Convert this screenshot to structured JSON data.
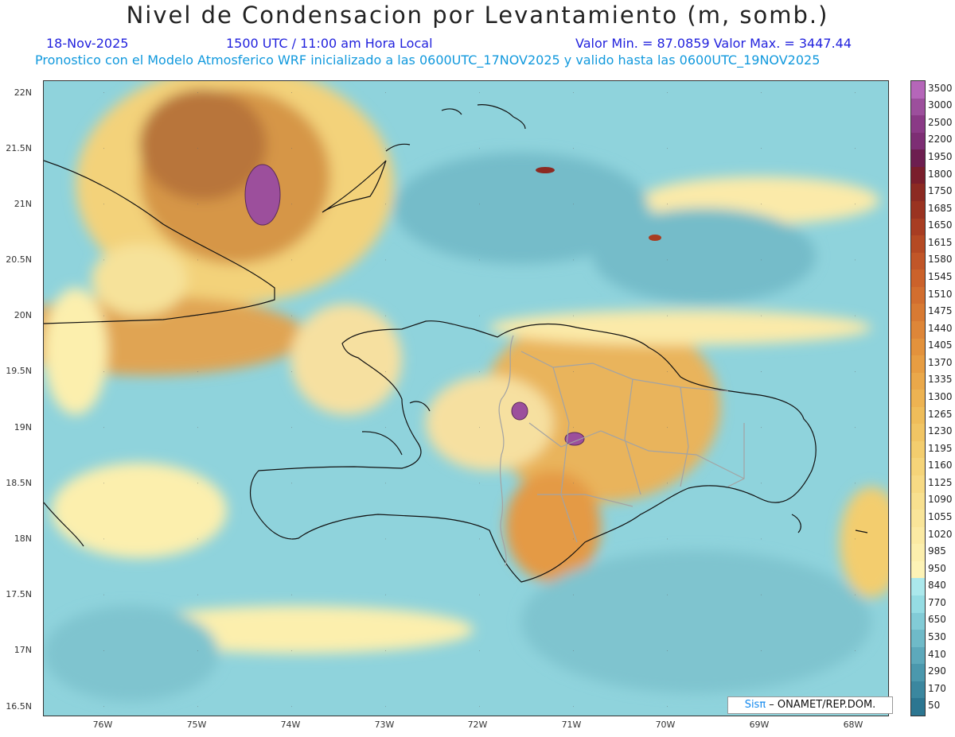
{
  "header": {
    "title": "Nivel de Condensacion por Levantamiento (m, somb.)",
    "date": "18-Nov-2025",
    "time": "1500 UTC / 11:00 am Hora Local",
    "min_max": "Valor Min. = 87.0859  Valor Max. = 3447.44",
    "model_info": "Pronostico con el Modelo Atmosferico WRF inicializado a las 0600UTC_17NOV2025 y valido hasta las  0600UTC_19NOV2025"
  },
  "axes": {
    "lat_labels": [
      "22N",
      "21.5N",
      "21N",
      "20.5N",
      "20N",
      "19.5N",
      "19N",
      "18.5N",
      "18N",
      "17.5N",
      "17N",
      "16.5N"
    ],
    "lon_labels": [
      "76W",
      "75W",
      "74W",
      "73W",
      "72W",
      "71W",
      "70W",
      "69W",
      "68W"
    ]
  },
  "colorbar": {
    "labels": [
      "3500",
      "3000",
      "2500",
      "2200",
      "1950",
      "1800",
      "1750",
      "1685",
      "1650",
      "1615",
      "1580",
      "1545",
      "1510",
      "1475",
      "1440",
      "1405",
      "1370",
      "1335",
      "1300",
      "1265",
      "1230",
      "1195",
      "1160",
      "1125",
      "1090",
      "1055",
      "1020",
      "985",
      "950",
      "840",
      "770",
      "650",
      "530",
      "410",
      "290",
      "170",
      "50"
    ],
    "colors": [
      "#b566b9",
      "#9c4f9c",
      "#8a3a86",
      "#7d2e74",
      "#6d1e50",
      "#7a1e2c",
      "#8c2a22",
      "#9a3321",
      "#a83d22",
      "#b54a24",
      "#c15628",
      "#cb622b",
      "#d26e2f",
      "#d87a33",
      "#de8638",
      "#e3923c",
      "#e79d42",
      "#eaa84a",
      "#edb352",
      "#efbd5a",
      "#f1c564",
      "#f3cd6e",
      "#f5d479",
      "#f7da84",
      "#f8e08f",
      "#f9e599",
      "#fbeaa3",
      "#fcefad",
      "#fdf3b6",
      "#abe8ec",
      "#95dce3",
      "#82cbd6",
      "#6fbac8",
      "#5da9bb",
      "#4b98ad",
      "#3b879f",
      "#2c7691"
    ]
  },
  "credit": {
    "brand": "Sisπ",
    "text": " – ONAMET/REP.DOM."
  }
}
